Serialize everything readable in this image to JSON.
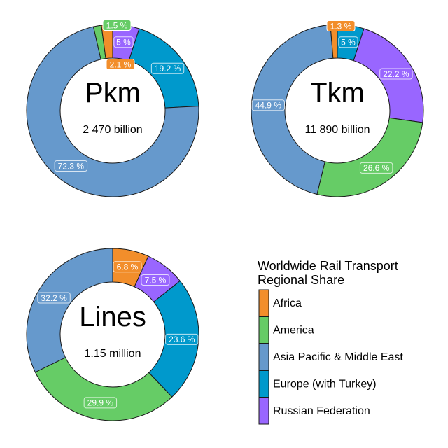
{
  "legend": {
    "title_line1": "Worldwide Rail Transport",
    "title_line2": "Regional Share",
    "items": [
      {
        "label": "Africa",
        "color": "#F28E2B"
      },
      {
        "label": "America",
        "color": "#66CC66"
      },
      {
        "label": "Asia Pacific & Middle East",
        "color": "#6699CC"
      },
      {
        "label": "Europe (with Turkey)",
        "color": "#0099CC"
      },
      {
        "label": "Russian Federation",
        "color": "#9966FF"
      }
    ]
  },
  "chart_data": [
    {
      "type": "pie",
      "title": "Pkm",
      "subtitle": "2 470 billion",
      "categories": [
        "Africa",
        "America",
        "Asia Pacific & Middle East",
        "Europe (with Turkey)",
        "Russian Federation"
      ],
      "values": [
        2.1,
        1.5,
        72.3,
        19.2,
        5.0
      ],
      "value_labels": [
        "2.1 %",
        "1.5 %",
        "72.3 %",
        "19.2 %",
        "5 %"
      ],
      "slice_order": [
        "Russian Federation",
        "Europe (with Turkey)",
        "Asia Pacific & Middle East",
        "America",
        "Africa"
      ],
      "donut": true
    },
    {
      "type": "pie",
      "title": "Tkm",
      "subtitle": "11 890 billion",
      "categories": [
        "Africa",
        "America",
        "Asia Pacific & Middle East",
        "Europe (with Turkey)",
        "Russian Federation"
      ],
      "values": [
        1.3,
        26.6,
        44.9,
        5.0,
        22.2
      ],
      "value_labels": [
        "1.3 %",
        "26.6 %",
        "44.9 %",
        "5 %",
        "22.2 %"
      ],
      "slice_order": [
        "Europe (with Turkey)",
        "Russian Federation",
        "America",
        "Asia Pacific & Middle East",
        "Africa"
      ],
      "donut": true
    },
    {
      "type": "pie",
      "title": "Lines",
      "subtitle": "1.15 million",
      "categories": [
        "Africa",
        "America",
        "Asia Pacific & Middle East",
        "Europe (with Turkey)",
        "Russian Federation"
      ],
      "values": [
        6.8,
        29.9,
        32.2,
        23.6,
        7.5
      ],
      "value_labels": [
        "6.8 %",
        "29.9 %",
        "32.2 %",
        "23.6 %",
        "7.5 %"
      ],
      "slice_order": [
        "Africa",
        "Russian Federation",
        "Europe (with Turkey)",
        "America",
        "Asia Pacific & Middle East"
      ],
      "donut": true
    }
  ]
}
